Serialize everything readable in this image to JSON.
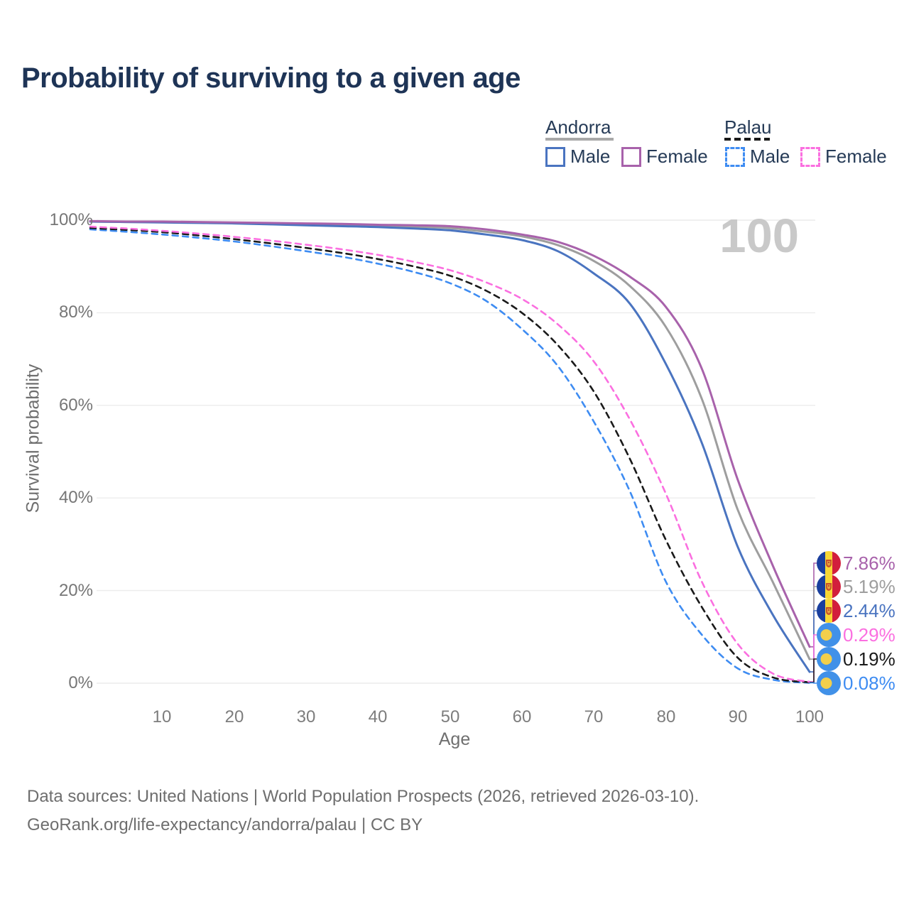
{
  "title": "Probability of surviving to a given age",
  "watermark": "100",
  "legend": {
    "position": "top-right",
    "andorra": {
      "label": "Andorra",
      "male": "Male",
      "female": "Female",
      "underline_color": "#a8a8a8",
      "male_color": "#4a74c0",
      "female_color": "#a862ab"
    },
    "palau": {
      "label": "Palau",
      "male": "Male",
      "female": "Female",
      "underline_color": "#1a1a1a",
      "male_color": "#3e8cf2",
      "female_color": "#fb6fe0"
    }
  },
  "axes": {
    "y_label": "Survival probability",
    "x_label": "Age",
    "y_ticks": [
      "100%",
      "80%",
      "60%",
      "40%",
      "20%",
      "0%"
    ],
    "x_ticks": [
      "10",
      "20",
      "30",
      "40",
      "50",
      "60",
      "70",
      "80",
      "90",
      "100"
    ]
  },
  "chart_data": {
    "type": "line",
    "title": "Probability of surviving to a given age",
    "xlabel": "Age",
    "ylabel": "Survival probability",
    "xlim": [
      0,
      100
    ],
    "ylim": [
      0,
      100
    ],
    "grid": "horizontal",
    "legend_position": "top-right",
    "x": [
      0,
      5,
      10,
      15,
      20,
      25,
      30,
      35,
      40,
      45,
      50,
      55,
      60,
      65,
      70,
      75,
      80,
      85,
      90,
      95,
      100
    ],
    "series": [
      {
        "name": "Andorra Female",
        "country": "Andorra",
        "sex": "Female",
        "style": "solid",
        "color": "#a862ab",
        "values": [
          99.8,
          99.7,
          99.7,
          99.6,
          99.5,
          99.4,
          99.3,
          99.2,
          99.0,
          98.9,
          98.7,
          98.0,
          96.9,
          95.3,
          92.3,
          87.8,
          81.3,
          68.0,
          44.0,
          25.0,
          7.86
        ],
        "end_label": "7.86%"
      },
      {
        "name": "Andorra Both sexes",
        "country": "Andorra",
        "sex": "All",
        "style": "solid",
        "color": "#9e9e9e",
        "values": [
          99.7,
          99.6,
          99.6,
          99.5,
          99.4,
          99.3,
          99.1,
          99.0,
          98.8,
          98.6,
          98.3,
          97.5,
          96.5,
          94.6,
          91.2,
          85.8,
          77.0,
          61.5,
          37.5,
          21.5,
          5.19
        ],
        "end_label": "5.19%"
      },
      {
        "name": "Andorra Male",
        "country": "Andorra",
        "sex": "Male",
        "style": "solid",
        "color": "#4a74c0",
        "values": [
          99.7,
          99.6,
          99.5,
          99.4,
          99.3,
          99.1,
          98.9,
          98.7,
          98.5,
          98.2,
          97.8,
          96.9,
          95.7,
          93.3,
          88.5,
          82.0,
          69.0,
          52.0,
          29.5,
          14.5,
          2.44
        ],
        "end_label": "2.44%"
      },
      {
        "name": "Palau Female",
        "country": "Palau",
        "sex": "Female",
        "style": "dashed",
        "color": "#fb6fe0",
        "values": [
          98.6,
          98.2,
          97.7,
          97.1,
          96.4,
          95.6,
          94.7,
          93.7,
          92.5,
          91.0,
          89.2,
          86.6,
          83.0,
          77.5,
          69.5,
          57.0,
          41.0,
          22.0,
          8.5,
          2.0,
          0.29
        ],
        "end_label": "0.29%"
      },
      {
        "name": "Palau Both sexes",
        "country": "Palau",
        "sex": "All",
        "style": "dashed",
        "color": "#1a1a1a",
        "values": [
          98.3,
          97.9,
          97.4,
          96.7,
          95.9,
          95.0,
          94.0,
          92.9,
          91.6,
          90.0,
          88.0,
          84.8,
          80.0,
          73.0,
          63.0,
          48.5,
          31.0,
          16.5,
          5.5,
          1.2,
          0.19
        ],
        "end_label": "0.19%"
      },
      {
        "name": "Palau Male",
        "country": "Palau",
        "sex": "Male",
        "style": "dashed",
        "color": "#3e8cf2",
        "values": [
          98.0,
          97.5,
          96.9,
          96.2,
          95.4,
          94.4,
          93.3,
          92.1,
          90.6,
          88.8,
          86.4,
          82.6,
          76.5,
          68.5,
          56.5,
          41.5,
          22.0,
          10.5,
          3.2,
          0.7,
          0.08
        ],
        "end_label": "0.08%"
      }
    ]
  },
  "end_labels": [
    {
      "value": "7.86%",
      "color": "#a862ab",
      "flag": "andorra"
    },
    {
      "value": "5.19%",
      "color": "#9e9e9e",
      "flag": "andorra"
    },
    {
      "value": "2.44%",
      "color": "#4a74c0",
      "flag": "andorra"
    },
    {
      "value": "0.29%",
      "color": "#fb6fe0",
      "flag": "palau"
    },
    {
      "value": "0.19%",
      "color": "#1a1a1a",
      "flag": "palau"
    },
    {
      "value": "0.08%",
      "color": "#3e8cf2",
      "flag": "palau"
    }
  ],
  "footer": {
    "line1": "Data sources: United Nations | World Population Prospects (2026, retrieved 2026-03-10).",
    "line2": "GeoRank.org/life-expectancy/andorra/palau | CC BY"
  }
}
